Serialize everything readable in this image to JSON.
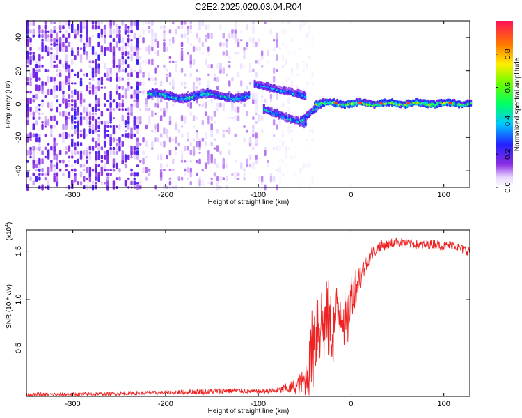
{
  "title": "C2E2.2025.020.03.04.R04",
  "colors": {
    "snr_line": "#ee2222",
    "axis": "#000000",
    "background": "#ffffff"
  },
  "chart_data": [
    {
      "type": "heatmap",
      "title": "C2E2.2025.020.03.04.R04",
      "xlabel": "Height of straight line (km)",
      "ylabel": "Frequency (Hz)",
      "colorbar_label": "Normalized spectral amplitude",
      "xlim": [
        -350,
        128
      ],
      "ylim": [
        -50,
        50
      ],
      "clim": [
        0,
        1
      ],
      "xticks": [
        -300,
        -200,
        -100,
        0,
        100
      ],
      "xtick_labels": [
        "-300",
        "-200",
        "-100",
        "0",
        "100"
      ],
      "yticks": [
        -40,
        -20,
        0,
        20,
        40
      ],
      "ytick_labels": [
        "-40",
        "-20",
        "0",
        "20",
        "40"
      ],
      "cticks": [
        0.0,
        0.2,
        0.4,
        0.6,
        0.8
      ],
      "ctick_labels": [
        "0.0",
        "0.2",
        "0.4",
        "0.6",
        "0.8"
      ],
      "colormap": "rainbow (white → violet → blue → cyan → green → yellow → red)",
      "noise_region": {
        "x": [
          -350,
          -80
        ],
        "y": [
          -50,
          50
        ]
      },
      "features": [
        {
          "name": "main track",
          "x": [
            -220,
            -110
          ],
          "y_center": 5,
          "amplitude": 0.35
        },
        {
          "name": "upper branch",
          "x": [
            -105,
            -50
          ],
          "y_start": 12,
          "y_end": 5,
          "amplitude": 0.25
        },
        {
          "name": "lower branch",
          "x": [
            -95,
            -50
          ],
          "y_start": -3,
          "y_end": -12,
          "amplitude": 0.3
        },
        {
          "name": "converged line",
          "x": [
            -40,
            128
          ],
          "y_center": 0.5,
          "amplitude": 0.55
        }
      ]
    },
    {
      "type": "line",
      "xlabel": "Height of straight line (km)",
      "ylabel": "SNR (10 * v/v)",
      "y_multiplier": "(x10^4)",
      "y_multiplier_base": "(x10",
      "y_multiplier_exp": "4",
      "xlim": [
        -350,
        128
      ],
      "ylim": [
        0,
        1.72
      ],
      "xticks": [
        -300,
        -200,
        -100,
        0,
        100
      ],
      "xtick_labels": [
        "-300",
        "-200",
        "-100",
        "0",
        "100"
      ],
      "yticks": [
        0.5,
        1.0,
        1.5
      ],
      "ytick_labels": [
        "0.5",
        "1.0",
        "1.5"
      ],
      "series": [
        {
          "color": "#ee2222",
          "x": [
            -350,
            -300,
            -250,
            -200,
            -160,
            -130,
            -100,
            -80,
            -60,
            -50,
            -45,
            -40,
            -35,
            -30,
            -25,
            -20,
            -15,
            -10,
            -5,
            0,
            5,
            10,
            15,
            20,
            25,
            30,
            40,
            50,
            60,
            70,
            80,
            90,
            100,
            110,
            120,
            128
          ],
          "y": [
            0.02,
            0.02,
            0.03,
            0.04,
            0.05,
            0.06,
            0.05,
            0.06,
            0.1,
            0.15,
            0.3,
            0.6,
            0.85,
            0.7,
            0.8,
            0.65,
            0.85,
            0.95,
            0.7,
            1.05,
            1.15,
            1.25,
            1.35,
            1.45,
            1.5,
            1.55,
            1.57,
            1.6,
            1.58,
            1.57,
            1.56,
            1.58,
            1.55,
            1.57,
            1.52,
            1.5
          ],
          "noise_amplitude": [
            0.02,
            0.02,
            0.02,
            0.02,
            0.03,
            0.03,
            0.02,
            0.03,
            0.08,
            0.15,
            0.3,
            0.55,
            0.55,
            0.4,
            0.45,
            0.35,
            0.35,
            0.35,
            0.3,
            0.25,
            0.2,
            0.15,
            0.1,
            0.08,
            0.07,
            0.06,
            0.05,
            0.05,
            0.05,
            0.05,
            0.05,
            0.05,
            0.05,
            0.05,
            0.05,
            0.05
          ]
        }
      ]
    }
  ]
}
